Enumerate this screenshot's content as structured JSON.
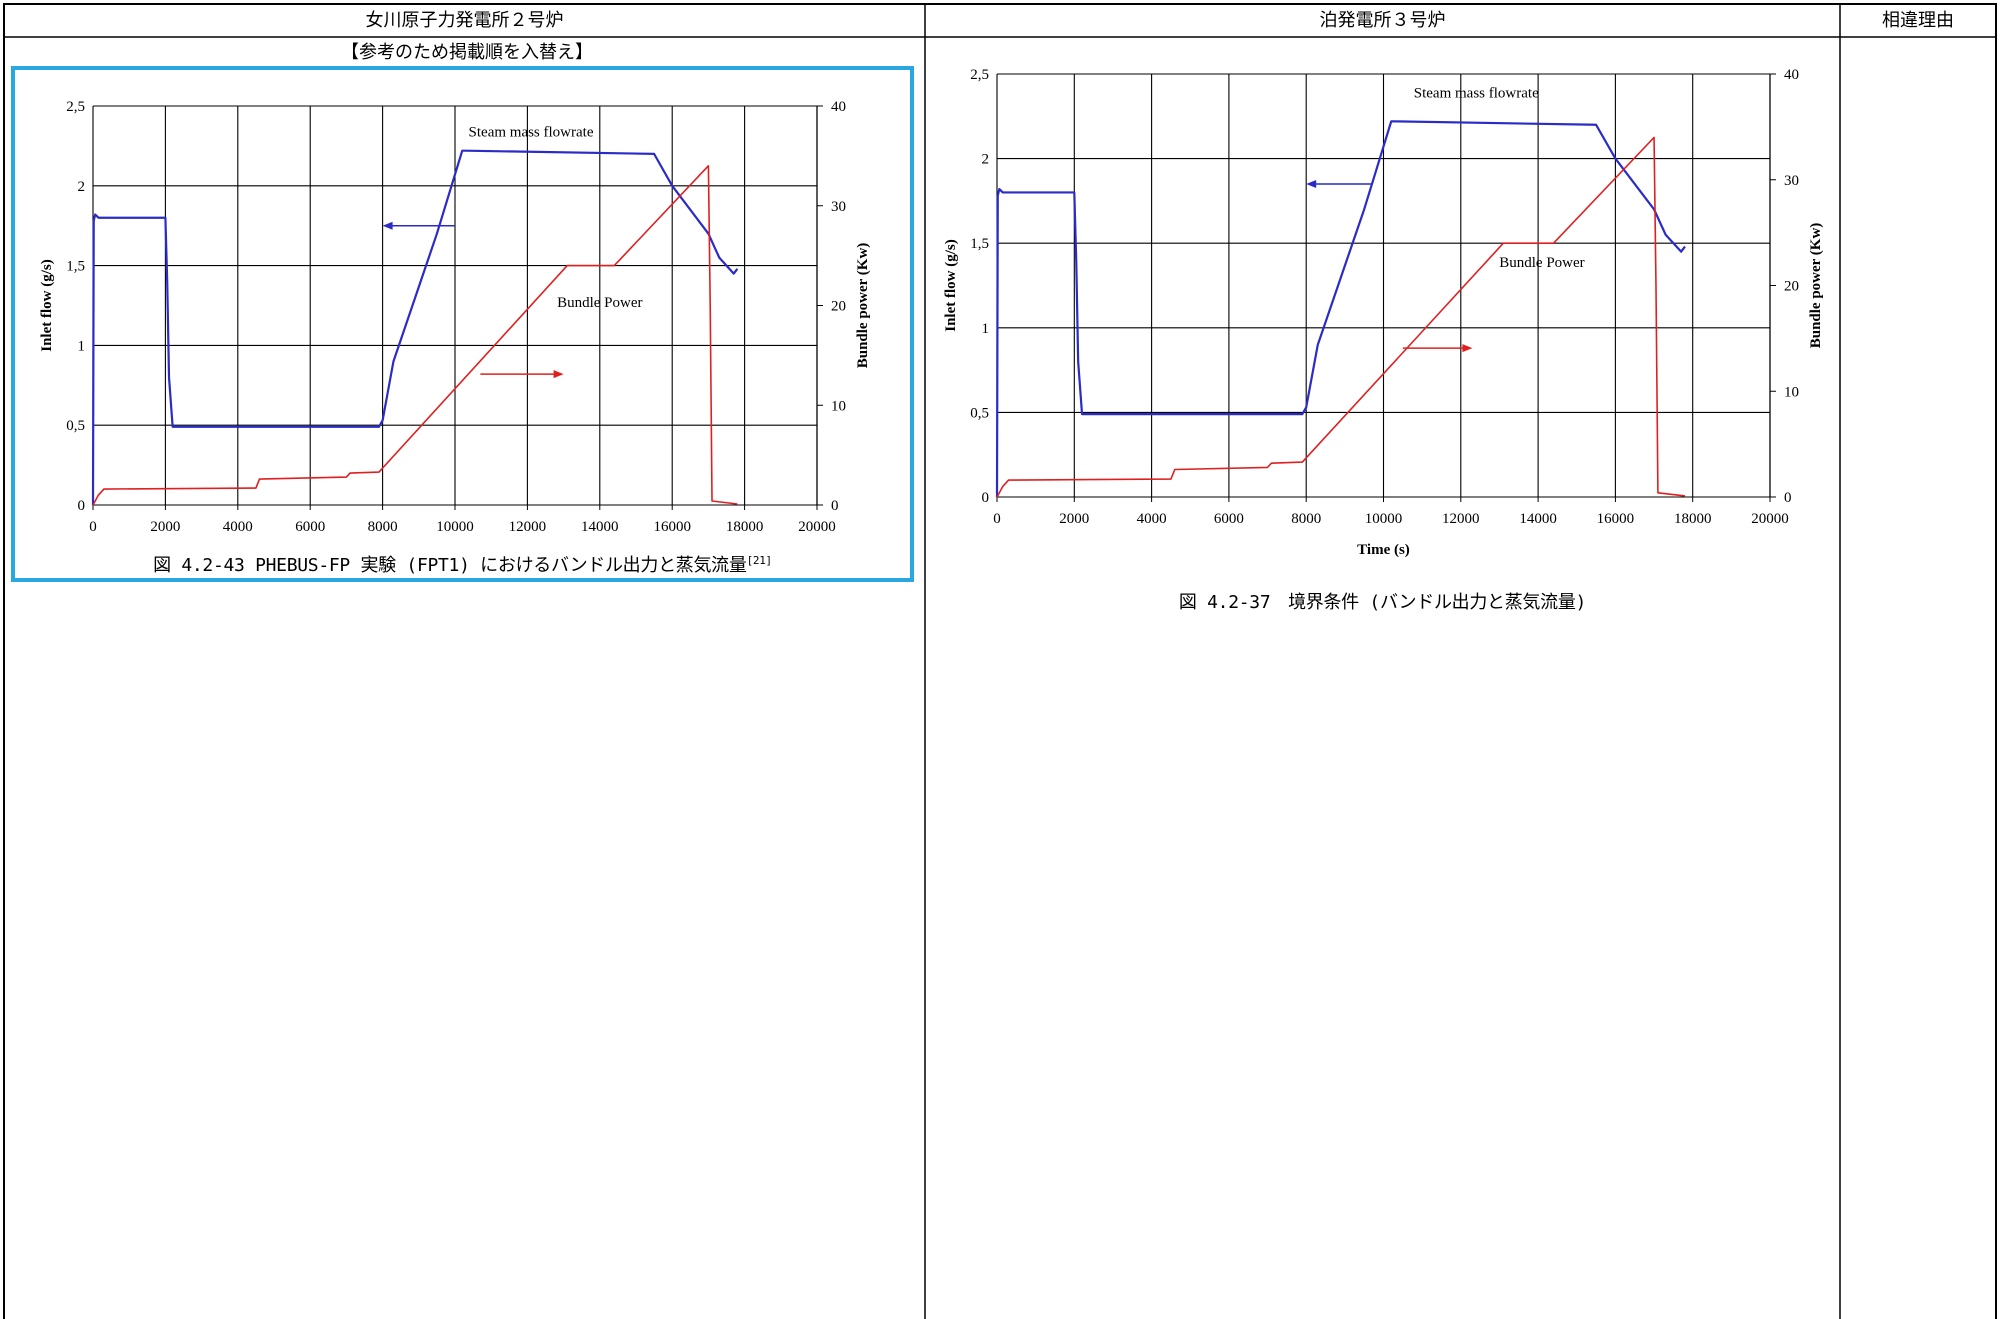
{
  "header": {
    "col1": "女川原子力発電所２号炉",
    "col2": "泊発電所３号炉",
    "col3": "相違理由"
  },
  "left_note": "【参考のため掲載順を入替え】",
  "left_caption": {
    "text": "図 4.2-43 PHEBUS-FP 実験 (FPT1) におけるバンドル出力と蒸気流量",
    "ref": "[21]"
  },
  "right_caption": "図 4.2-37　境界条件 (バンドル出力と蒸気流量)",
  "colors": {
    "steam": "#2b2bc8",
    "power": "#e02020",
    "highlight": "#29a8e0"
  },
  "chart_data": [
    {
      "type": "line",
      "title": "",
      "xlabel": "",
      "ylabel": "Inlet flow (g/s)",
      "y2label": "Bundle power (Kw)",
      "xlim": [
        0,
        20000
      ],
      "ylim": [
        0,
        2.5
      ],
      "y2lim": [
        0,
        40
      ],
      "xticks": [
        "0",
        "2000",
        "4000",
        "6000",
        "8000",
        "10000",
        "12000",
        "14000",
        "16000",
        "18000",
        "20000"
      ],
      "yticks": [
        "0",
        "0,5",
        "1",
        "1,5",
        "2",
        "2,5"
      ],
      "y2ticks": [
        "0",
        "10",
        "20",
        "30",
        "40"
      ],
      "grid": true,
      "annotations": [
        "Steam mass flowrate",
        "Bundle Power"
      ],
      "series": [
        {
          "name": "Steam mass flowrate",
          "axis": "left",
          "x": [
            0,
            20,
            60,
            150,
            2000,
            2050,
            2100,
            2200,
            7900,
            8000,
            8300,
            9500,
            10200,
            10300,
            15500,
            16000,
            17000,
            17300,
            17700,
            17800
          ],
          "y": [
            0,
            1.78,
            1.82,
            1.8,
            1.8,
            1.4,
            0.8,
            0.49,
            0.49,
            0.53,
            0.9,
            1.7,
            2.22,
            2.22,
            2.2,
            2.0,
            1.7,
            1.55,
            1.45,
            1.48
          ]
        },
        {
          "name": "Bundle Power",
          "axis": "right",
          "x": [
            0,
            150,
            300,
            4500,
            4600,
            7000,
            7100,
            7900,
            13100,
            14400,
            17000,
            17050,
            17100,
            17800
          ],
          "y": [
            0,
            1.0,
            1.6,
            1.7,
            2.6,
            2.8,
            3.2,
            3.3,
            24.0,
            24.0,
            34.0,
            20.0,
            0.4,
            0.1
          ]
        }
      ]
    },
    {
      "type": "line",
      "title": "",
      "xlabel": "Time (s)",
      "ylabel": "Inlet flow (g/s)",
      "y2label": "Bundle power (Kw)",
      "xlim": [
        0,
        20000
      ],
      "ylim": [
        0,
        2.5
      ],
      "y2lim": [
        0,
        40
      ],
      "xticks": [
        "0",
        "2000",
        "4000",
        "6000",
        "8000",
        "10000",
        "12000",
        "14000",
        "16000",
        "18000",
        "20000"
      ],
      "yticks": [
        "0",
        "0,5",
        "1",
        "1,5",
        "2",
        "2,5"
      ],
      "y2ticks": [
        "0",
        "10",
        "20",
        "30",
        "40"
      ],
      "grid": true,
      "annotations": [
        "Steam mass flowrate",
        "Bundle Power"
      ],
      "series": [
        {
          "name": "Steam mass flowrate",
          "axis": "left",
          "x": [
            0,
            20,
            60,
            150,
            2000,
            2050,
            2100,
            2200,
            7900,
            8000,
            8300,
            9500,
            10200,
            10300,
            15500,
            16000,
            17000,
            17300,
            17700,
            17800
          ],
          "y": [
            0,
            1.78,
            1.82,
            1.8,
            1.8,
            1.4,
            0.8,
            0.49,
            0.49,
            0.53,
            0.9,
            1.7,
            2.22,
            2.22,
            2.2,
            2.0,
            1.7,
            1.55,
            1.45,
            1.48
          ]
        },
        {
          "name": "Bundle Power",
          "axis": "right",
          "x": [
            0,
            150,
            300,
            4500,
            4600,
            7000,
            7100,
            7900,
            13100,
            14400,
            17000,
            17050,
            17100,
            17800
          ],
          "y": [
            0,
            1.0,
            1.6,
            1.7,
            2.6,
            2.8,
            3.2,
            3.3,
            24.0,
            24.0,
            34.0,
            20.0,
            0.4,
            0.1
          ]
        }
      ]
    }
  ]
}
